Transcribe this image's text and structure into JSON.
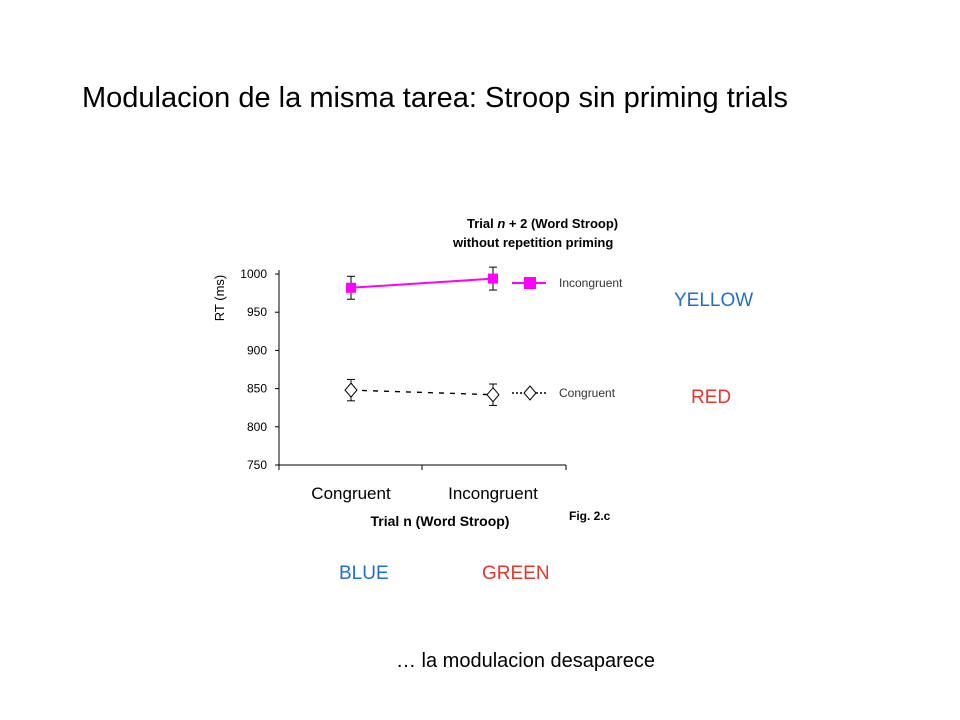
{
  "slide": {
    "title": "Modulacion de la misma tarea:  Stroop sin priming trials",
    "footer": "… la modulacion desaparece",
    "figure_label": "Fig. 2.c",
    "stroop_words": {
      "yellow": {
        "text": "YELLOW",
        "color": "#1f6fd1"
      },
      "red": {
        "text": "RED",
        "color": "#e8352e"
      },
      "blue": {
        "text": "BLUE",
        "color": "#1f6fd1"
      },
      "green": {
        "text": "GREEN",
        "color": "#e8352e"
      }
    }
  },
  "chart_data": {
    "type": "line",
    "title_line1_pre": "Trial ",
    "title_line1_italic": "n",
    "title_line1_post": " + 2 (Word Stroop)",
    "title_line2": "without repetition priming",
    "xlabel": "Trial n (Word Stroop)",
    "ylabel": "RT (ms)",
    "categories": [
      "Congruent",
      "Incongruent"
    ],
    "ylim": [
      750,
      1000
    ],
    "yticks": [
      "750",
      "800",
      "850",
      "900",
      "950",
      "1000"
    ],
    "legend_position": "right",
    "series": [
      {
        "name": "Incongruent",
        "values": [
          982,
          994
        ],
        "error": [
          15,
          15
        ],
        "color": "#ff00ff",
        "marker": "square",
        "line": "solid"
      },
      {
        "name": "Congruent",
        "values": [
          848,
          842
        ],
        "error": [
          14,
          14
        ],
        "color": "#000000",
        "marker": "diamond",
        "line": "dashed"
      }
    ]
  }
}
